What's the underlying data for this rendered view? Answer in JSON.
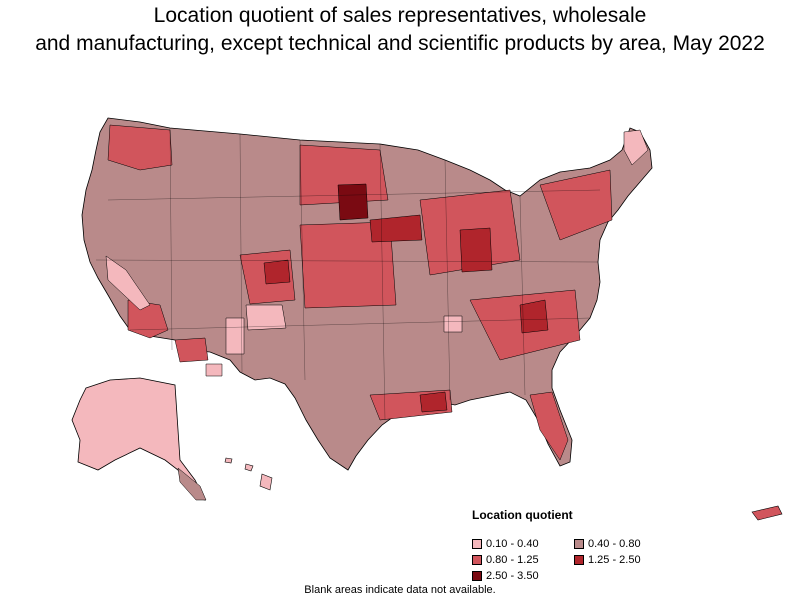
{
  "title": {
    "line1": "Location quotient of sales representatives, wholesale",
    "line2": "and manufacturing, except technical and scientific products by area, May 2022"
  },
  "legend": {
    "title": "Location quotient",
    "items": [
      {
        "label": "0.10 - 0.40",
        "color": "#f4b8bd"
      },
      {
        "label": "0.40 - 0.80",
        "color": "#b98a8a"
      },
      {
        "label": "0.80 - 1.25",
        "color": "#d1555c"
      },
      {
        "label": "1.25 - 2.50",
        "color": "#b0252c"
      },
      {
        "label": "2.50 - 3.50",
        "color": "#7a0a12"
      }
    ]
  },
  "footnote": "Blank areas indicate data not available.",
  "colors": {
    "border": "#000000",
    "background": "#ffffff"
  }
}
